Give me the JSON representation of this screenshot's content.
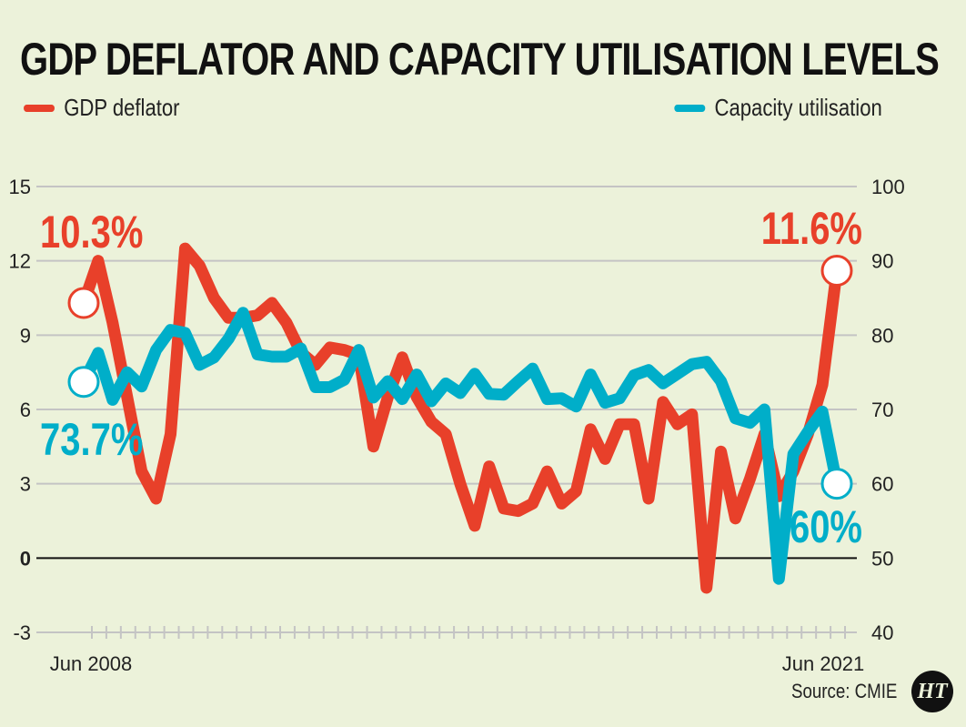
{
  "title": "GDP DEFLATOR AND CAPACITY UTILISATION LEVELS",
  "source": "Source: CMIE",
  "logo": "HT",
  "colors": {
    "background": "#ecf2da",
    "gdp": "#e8402a",
    "capacity": "#00aec9"
  },
  "chart_data": {
    "type": "line",
    "title": "GDP DEFLATOR AND CAPACITY UTILISATION LEVELS",
    "x_start": "Jun 2008",
    "x_end": "Jun 2021",
    "frequency": "quarterly",
    "x_tick_labels": [
      "Jun 2008",
      "Jun 2021"
    ],
    "left_axis": {
      "ylim": [
        -3,
        15
      ],
      "ticks": [
        -3,
        0,
        3,
        6,
        9,
        12,
        15
      ]
    },
    "right_axis": {
      "ylim": [
        40,
        100
      ],
      "ticks": [
        40,
        50,
        60,
        70,
        80,
        90,
        100
      ]
    },
    "grid": true,
    "legend_placement": "top",
    "series": [
      {
        "name": "GDP deflator",
        "axis": "left",
        "color": "#e8402a",
        "values": [
          10.3,
          12.0,
          9.5,
          6.5,
          3.5,
          2.4,
          5.0,
          12.5,
          11.8,
          10.5,
          9.7,
          9.7,
          9.8,
          10.3,
          9.5,
          8.3,
          7.8,
          8.5,
          8.4,
          8.2,
          4.5,
          6.5,
          8.1,
          6.5,
          5.5,
          5.0,
          3.0,
          1.3,
          3.7,
          2.0,
          1.9,
          2.2,
          3.5,
          2.2,
          2.7,
          5.2,
          4.0,
          5.4,
          5.4,
          2.4,
          6.3,
          5.4,
          5.8,
          -1.2,
          4.3,
          1.6,
          3.2,
          5.0,
          2.5,
          3.5,
          5.0,
          7.0,
          11.6
        ],
        "start_label": "10.3%",
        "end_label": "11.6%"
      },
      {
        "name": "Capacity utilisation",
        "axis": "right",
        "color": "#00aec9",
        "values": [
          73.7,
          77.6,
          71.3,
          75.0,
          73.1,
          78.0,
          80.7,
          80.3,
          76.0,
          77.0,
          79.5,
          83.0,
          77.4,
          77.1,
          77.1,
          78.2,
          73.0,
          73.0,
          74.0,
          78.0,
          71.6,
          73.8,
          71.4,
          74.7,
          71.1,
          73.5,
          72.2,
          74.8,
          72.1,
          72.0,
          73.8,
          75.5,
          71.4,
          71.5,
          70.4,
          74.7,
          70.9,
          71.5,
          74.6,
          75.3,
          73.5,
          74.8,
          76.1,
          76.4,
          73.8,
          68.8,
          68.2,
          70.0,
          47.2,
          64.0,
          67.0,
          69.7,
          60.0
        ],
        "start_label": "73.7%",
        "end_label": "60%"
      }
    ]
  }
}
